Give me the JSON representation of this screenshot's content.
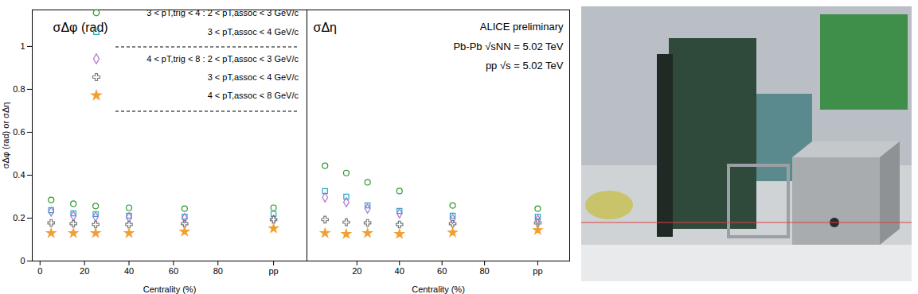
{
  "chart_data": [
    {
      "type": "scatter",
      "title": "σΔφ (rad)",
      "xlabel": "Centrality (%)",
      "ylabel": "σΔφ (rad) or σΔη",
      "x": [
        5,
        15,
        25,
        40,
        65,
        105
      ],
      "xlim": [
        -3.5,
        120
      ],
      "xticks": [
        0,
        20,
        40,
        60,
        80,
        {
          "value": 105,
          "label": "pp"
        }
      ],
      "ylim": [
        0,
        1.17
      ],
      "yticks": [
        0,
        0.2,
        0.4,
        0.6,
        0.8,
        1
      ],
      "legend": "top",
      "series": [
        {
          "name": "3 < pT,trig < 4 : 2 < pT,assoc < 3 GeV/c",
          "color": "#2e9a2e",
          "marker": "circle",
          "values": [
            0.285,
            0.267,
            0.256,
            0.248,
            0.244,
            0.248
          ]
        },
        {
          "name": "3 < pT,assoc < 4 GeV/c",
          "color": "#19aacb",
          "marker": "square",
          "values": [
            0.237,
            0.222,
            0.219,
            0.211,
            0.207,
            0.219
          ]
        },
        {
          "name": "4 < pT,trig < 8 : 2 < pT,assoc < 3 GeV/c",
          "color": "#b070d0",
          "marker": "diamond",
          "values": [
            0.23,
            0.21,
            0.207,
            0.204,
            0.2,
            0.193
          ]
        },
        {
          "name": "3 < pT,assoc < 4 GeV/c",
          "color": "#7a7a7a",
          "marker": "cross",
          "values": [
            0.178,
            0.174,
            0.17,
            0.17,
            0.174,
            0.193
          ]
        },
        {
          "name": "4 < pT,assoc < 8 GeV/c",
          "color": "#f0a030",
          "marker": "star",
          "values": [
            0.13,
            0.13,
            0.13,
            0.13,
            0.137,
            0.152
          ]
        }
      ]
    },
    {
      "type": "scatter",
      "title": "σΔη",
      "xlabel": "Centrality (%)",
      "annotations": [
        "ALICE preliminary",
        "Pb-Pb √sNN = 5.02 TeV",
        "pp √s = 5.02 TeV"
      ],
      "x": [
        5,
        15,
        25,
        40,
        65,
        105
      ],
      "xlim": [
        -3.5,
        120
      ],
      "xticks": [
        20,
        40,
        60,
        80,
        {
          "value": 105,
          "label": "pp"
        }
      ],
      "ylim": [
        0,
        1.17
      ],
      "yticks": [
        0,
        0.2,
        0.4,
        0.6,
        0.8,
        1
      ],
      "tick_labels": "x",
      "series": [
        {
          "color": "#2e9a2e",
          "marker": "circle",
          "values": [
            0.444,
            0.41,
            0.367,
            0.326,
            0.259,
            0.244
          ]
        },
        {
          "color": "#19aacb",
          "marker": "square",
          "values": [
            0.326,
            0.3,
            0.259,
            0.233,
            0.211,
            0.207
          ]
        },
        {
          "color": "#b070d0",
          "marker": "diamond",
          "values": [
            0.296,
            0.274,
            0.244,
            0.222,
            0.196,
            0.193
          ]
        },
        {
          "color": "#7a7a7a",
          "marker": "cross",
          "values": [
            0.193,
            0.181,
            0.178,
            0.17,
            0.174,
            0.178
          ]
        },
        {
          "color": "#f0a030",
          "marker": "star",
          "values": [
            0.13,
            0.126,
            0.13,
            0.126,
            0.133,
            0.144
          ]
        }
      ]
    }
  ]
}
